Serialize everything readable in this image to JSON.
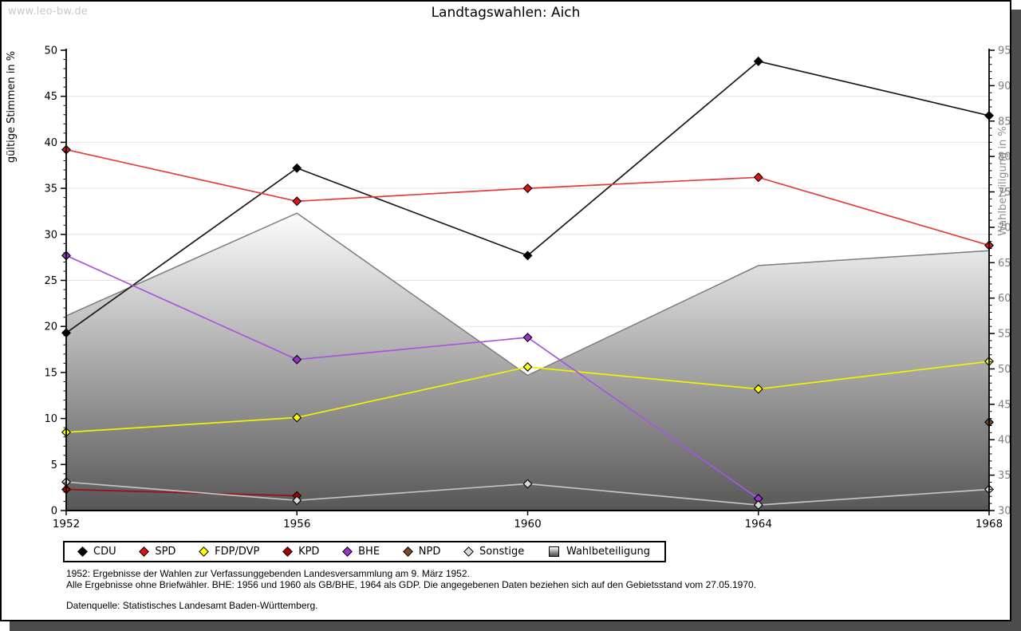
{
  "watermark": "www.leo-bw.de",
  "title": "Landtagswahlen: Aich",
  "chart_data": {
    "type": "line",
    "title": "Landtagswahlen: Aich",
    "categories": [
      1952,
      1956,
      1960,
      1964,
      1968
    ],
    "grid": true,
    "legend_position": "bottom",
    "axes": {
      "left": {
        "label": "gültige Stimmen in %",
        "min": 0,
        "max": 50,
        "tick_step": 5,
        "minor_step": 1
      },
      "right": {
        "label": "Wahlbeteiligung in %",
        "min": 30,
        "max": 95,
        "tick_step": 5,
        "minor_step": 1
      }
    },
    "series": [
      {
        "name": "CDU",
        "axis": "left",
        "marker_color": "#000000",
        "line_color": "#1a1a1a",
        "points": [
          [
            1952,
            19.3
          ],
          [
            1956,
            37.2
          ],
          [
            1960,
            27.7
          ],
          [
            1964,
            48.8
          ],
          [
            1968,
            42.9
          ]
        ]
      },
      {
        "name": "SPD",
        "axis": "left",
        "marker_color": "#e01212",
        "line_color": "#e43b3b",
        "points": [
          [
            1952,
            39.2
          ],
          [
            1956,
            33.6
          ],
          [
            1960,
            35.0
          ],
          [
            1964,
            36.2
          ],
          [
            1968,
            28.8
          ]
        ]
      },
      {
        "name": "FDP/DVP",
        "axis": "left",
        "marker_color": "#ffff00",
        "line_color": "#f2f200",
        "points": [
          [
            1952,
            8.5
          ],
          [
            1956,
            10.1
          ],
          [
            1960,
            15.6
          ],
          [
            1964,
            13.2
          ],
          [
            1968,
            16.2
          ]
        ]
      },
      {
        "name": "KPD",
        "axis": "left",
        "marker_color": "#aa0000",
        "line_color": "#991111",
        "points": [
          [
            1952,
            2.3
          ],
          [
            1956,
            1.6
          ]
        ]
      },
      {
        "name": "BHE",
        "axis": "left",
        "marker_color": "#9933cc",
        "line_color": "#a855e0",
        "points": [
          [
            1952,
            27.7
          ],
          [
            1956,
            16.4
          ],
          [
            1960,
            18.8
          ],
          [
            1964,
            1.3
          ]
        ]
      },
      {
        "name": "NPD",
        "axis": "left",
        "marker_color": "#7a4a28",
        "line_color": "#7a4a28",
        "points": [
          [
            1968,
            9.6
          ]
        ]
      },
      {
        "name": "Sonstige",
        "axis": "left",
        "marker_color": "#d9d9d9",
        "line_color": "#c4c4c4",
        "points": [
          [
            1952,
            3.1
          ],
          [
            1956,
            1.1
          ],
          [
            1960,
            2.9
          ],
          [
            1964,
            0.6
          ],
          [
            1968,
            2.3
          ]
        ]
      }
    ],
    "area_series": {
      "name": "Wahlbeteiligung",
      "axis": "right",
      "fill_top": "#ffffff",
      "fill_bottom": "#565656",
      "stroke": "#7d7d7d",
      "points": [
        [
          1952,
          57.5
        ],
        [
          1956,
          72.0
        ],
        [
          1960,
          49.1
        ],
        [
          1964,
          64.6
        ],
        [
          1968,
          66.7
        ]
      ]
    }
  },
  "legend": {
    "items": [
      {
        "label": "CDU",
        "swatch": "diamond",
        "color": "#000000"
      },
      {
        "label": "SPD",
        "swatch": "diamond",
        "color": "#e01212"
      },
      {
        "label": "FDP/DVP",
        "swatch": "diamond",
        "color": "#ffff00"
      },
      {
        "label": "KPD",
        "swatch": "diamond",
        "color": "#aa0000"
      },
      {
        "label": "BHE",
        "swatch": "diamond",
        "color": "#9933cc"
      },
      {
        "label": "NPD",
        "swatch": "diamond",
        "color": "#7a4a28"
      },
      {
        "label": "Sonstige",
        "swatch": "diamond",
        "color": "#d9d9d9"
      },
      {
        "label": "Wahlbeteiligung",
        "swatch": "square",
        "color": "gradient"
      }
    ]
  },
  "footnotes": {
    "line1": "1952: Ergebnisse der Wahlen zur Verfassunggebenden Landesversammlung am 9. März 1952.",
    "line2": "Alle Ergebnisse ohne Briefwähler. BHE: 1956 und 1960 als GB/BHE, 1964 als GDP. Die angegebenen Daten beziehen sich auf den Gebietsstand vom 27.05.1970.",
    "line3": "Datenquelle: Statistisches Landesamt Baden-Württemberg."
  }
}
